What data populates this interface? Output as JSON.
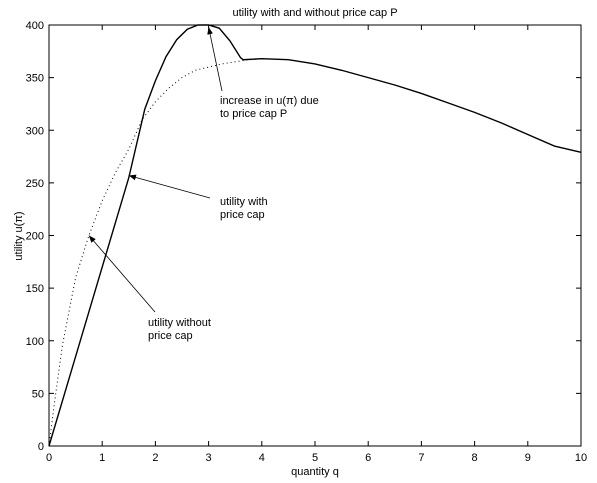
{
  "chart_data": {
    "type": "line",
    "title": "utility with and without price cap P",
    "xlabel": "quantity q",
    "ylabel": "utility u(π)",
    "xlim": [
      0,
      10
    ],
    "ylim": [
      0,
      400
    ],
    "xticks": [
      0,
      1,
      2,
      3,
      4,
      5,
      6,
      7,
      8,
      9,
      10
    ],
    "yticks": [
      0,
      50,
      100,
      150,
      200,
      250,
      300,
      350,
      400
    ],
    "grid": false,
    "legend": "none",
    "series": [
      {
        "style": "solid",
        "x": [
          0,
          0.5,
          1.0,
          1.5,
          1.8,
          2.0,
          2.2,
          2.4,
          2.6,
          2.8,
          3.0,
          3.2,
          3.4,
          3.6,
          3.65,
          4.0,
          4.5,
          5.0,
          5.5,
          6.0,
          6.5,
          7.0,
          7.5,
          8.0,
          8.5,
          9.0,
          9.5,
          10.0
        ],
        "y": [
          0,
          85,
          170,
          255,
          320,
          347,
          370,
          386,
          396,
          400,
          400,
          397,
          385,
          369,
          367,
          368,
          367,
          363,
          357,
          350,
          343,
          335,
          326,
          317,
          307,
          296,
          285,
          279
        ]
      },
      {
        "style": "dotted",
        "x": [
          0,
          0.1,
          0.25,
          0.5,
          0.75,
          1.0,
          1.25,
          1.5,
          1.75,
          2.0,
          2.25,
          2.5,
          2.75,
          3.0,
          3.25,
          3.5,
          3.75,
          4.0
        ],
        "y": [
          0,
          40,
          95,
          160,
          200,
          233,
          260,
          282,
          310,
          327,
          340,
          350,
          357,
          360,
          363,
          365,
          367,
          368
        ]
      }
    ],
    "annotations": [
      {
        "lines": [
          "increase in u(π) due",
          "to price cap P"
        ],
        "arrow_to": [
          3.0,
          398
        ]
      },
      {
        "lines": [
          "utility with",
          "price cap"
        ],
        "arrow_to": [
          1.5,
          257
        ]
      },
      {
        "lines": [
          "utility without",
          "price cap"
        ],
        "arrow_to": [
          0.75,
          200
        ]
      }
    ]
  }
}
